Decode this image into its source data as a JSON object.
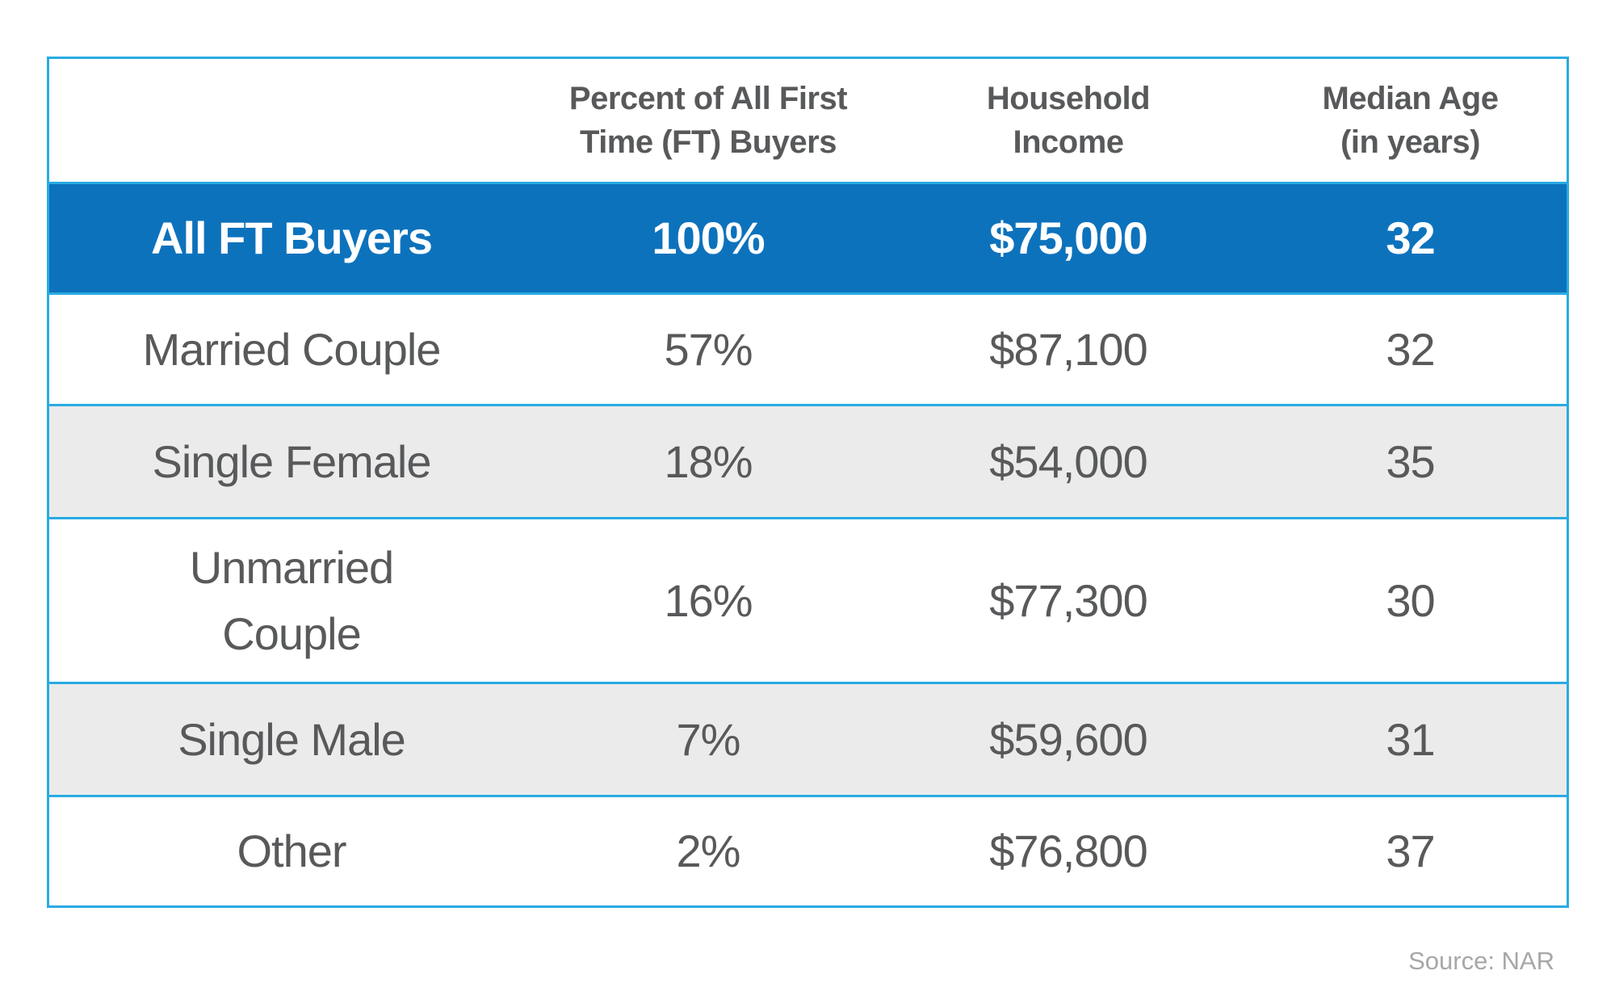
{
  "chart_data": {
    "type": "table",
    "columns": [
      "",
      "Percent of All First Time (FT) Buyers",
      "Household Income",
      "Median Age (in years)"
    ],
    "rows": [
      [
        "All FT Buyers",
        "100%",
        "$75,000",
        32
      ],
      [
        "Married Couple",
        "57%",
        "$87,100",
        32
      ],
      [
        "Single Female",
        "18%",
        "$54,000",
        35
      ],
      [
        "Unmarried Couple",
        "16%",
        "$77,300",
        30
      ],
      [
        "Single Male",
        "7%",
        "$59,600",
        31
      ],
      [
        "Other",
        "2%",
        "$76,800",
        37
      ]
    ],
    "highlight_row": "All FT Buyers",
    "source": "Source: NAR",
    "layout": {
      "zebra_striping": true,
      "grid": "horizontal-only",
      "header_position": "top"
    }
  },
  "table": {
    "headers": [
      "",
      "Percent of All First\nTime (FT) Buyers",
      "Household\nIncome",
      "Median Age\n(in years)"
    ],
    "rows": [
      {
        "label": "All FT Buyers",
        "percent": "100%",
        "income": "$75,000",
        "age": "32"
      },
      {
        "label": "Married Couple",
        "percent": "57%",
        "income": "$87,100",
        "age": "32"
      },
      {
        "label": "Single Female",
        "percent": "18%",
        "income": "$54,000",
        "age": "35"
      },
      {
        "label": "Unmarried\nCouple",
        "percent": "16%",
        "income": "$77,300",
        "age": "30"
      },
      {
        "label": "Single Male",
        "percent": "7%",
        "income": "$59,600",
        "age": "31"
      },
      {
        "label": "Other",
        "percent": "2%",
        "income": "$76,800",
        "age": "37"
      }
    ]
  },
  "source_note": "Source: NAR",
  "colors": {
    "highlight_row_blue": "#0D72BC",
    "border_cyan": "#29ABE2",
    "zebra_gray": "#EBEBEB",
    "text_gray": "#58595B",
    "highlight_text": "#FFFFFF",
    "source_gray": "#A7A7A7",
    "background": "#FFFFFF"
  }
}
